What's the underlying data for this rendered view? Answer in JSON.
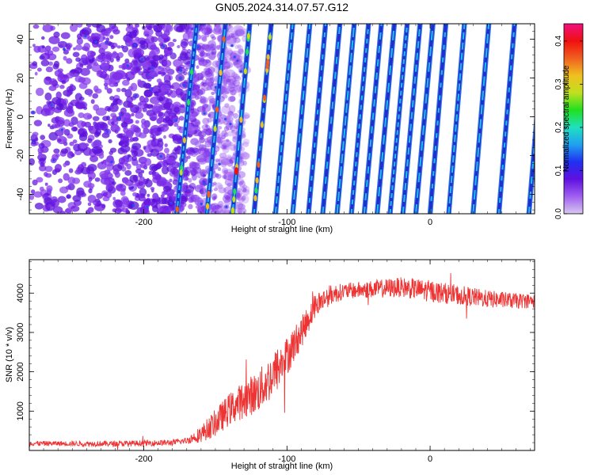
{
  "title": "GN05.2024.314.07.57.G12",
  "chart_data": [
    {
      "type": "heatmap",
      "xlabel": "Height of straight line (km)",
      "ylabel": "Frequency (Hz)",
      "xlim": [
        -280,
        73
      ],
      "ylim": [
        -50,
        48
      ],
      "x_ticks": [
        -200,
        -100,
        0
      ],
      "y_ticks": [
        -40,
        -20,
        0,
        20,
        40
      ],
      "colorbar": {
        "label": "Normalized spectral amplitude",
        "range": [
          0.0,
          0.44
        ],
        "ticks": [
          0.0,
          0.1,
          0.2,
          0.3,
          0.4
        ],
        "colors": [
          "#d8c8f0",
          "#a060f0",
          "#6010e0",
          "#2030f0",
          "#20a0f0",
          "#20e0c0",
          "#20e020",
          "#c0e020",
          "#f0c020",
          "#f06020",
          "#f01010",
          "#f01080"
        ]
      },
      "noise_region_x": [
        -280,
        -150
      ],
      "lines": [
        {
          "x_at_bottom": -177,
          "x_at_top": -163
        },
        {
          "x_at_bottom": -156,
          "x_at_top": -143
        },
        {
          "x_at_bottom": -138,
          "x_at_top": -126
        },
        {
          "x_at_bottom": -123,
          "x_at_top": -111
        },
        {
          "x_at_bottom": -108,
          "x_at_top": -96
        },
        {
          "x_at_bottom": -96,
          "x_at_top": -84
        },
        {
          "x_at_bottom": -85,
          "x_at_top": -73
        },
        {
          "x_at_bottom": -75,
          "x_at_top": -63
        },
        {
          "x_at_bottom": -65,
          "x_at_top": -53
        },
        {
          "x_at_bottom": -55,
          "x_at_top": -43
        },
        {
          "x_at_bottom": -46,
          "x_at_top": -34
        },
        {
          "x_at_bottom": -37,
          "x_at_top": -25
        },
        {
          "x_at_bottom": -28,
          "x_at_top": -16
        },
        {
          "x_at_bottom": -19,
          "x_at_top": -7
        },
        {
          "x_at_bottom": -10,
          "x_at_top": 2
        },
        {
          "x_at_bottom": 0,
          "x_at_top": 11
        },
        {
          "x_at_bottom": 13,
          "x_at_top": 24
        },
        {
          "x_at_bottom": 30,
          "x_at_top": 41
        },
        {
          "x_at_bottom": 48,
          "x_at_top": 59
        },
        {
          "x_at_bottom": 69,
          "x_at_top": 80
        }
      ]
    },
    {
      "type": "line",
      "xlabel": "Height of straight line (km)",
      "ylabel": "SNR (10 * v/v)",
      "xlim": [
        -280,
        73
      ],
      "ylim": [
        0,
        4850
      ],
      "x_ticks": [
        -200,
        -100,
        0
      ],
      "y_ticks": [
        1000,
        2000,
        3000,
        4000
      ],
      "color": "#ee3333",
      "points": [
        {
          "x": -280,
          "y": 180
        },
        {
          "x": -250,
          "y": 175
        },
        {
          "x": -220,
          "y": 170
        },
        {
          "x": -200,
          "y": 185
        },
        {
          "x": -180,
          "y": 200
        },
        {
          "x": -170,
          "y": 250
        },
        {
          "x": -160,
          "y": 420
        },
        {
          "x": -150,
          "y": 700
        },
        {
          "x": -140,
          "y": 1050
        },
        {
          "x": -130,
          "y": 1300
        },
        {
          "x": -120,
          "y": 1500
        },
        {
          "x": -110,
          "y": 1900
        },
        {
          "x": -100,
          "y": 2400
        },
        {
          "x": -90,
          "y": 3000
        },
        {
          "x": -80,
          "y": 3700
        },
        {
          "x": -70,
          "y": 3950
        },
        {
          "x": -60,
          "y": 4050
        },
        {
          "x": -40,
          "y": 4100
        },
        {
          "x": -20,
          "y": 4150
        },
        {
          "x": 0,
          "y": 4050
        },
        {
          "x": 20,
          "y": 3950
        },
        {
          "x": 40,
          "y": 3850
        },
        {
          "x": 60,
          "y": 3800
        },
        {
          "x": 73,
          "y": 3800
        }
      ],
      "noise_amplitude": [
        {
          "x": -280,
          "a": 60
        },
        {
          "x": -170,
          "a": 80
        },
        {
          "x": -150,
          "a": 350
        },
        {
          "x": -110,
          "a": 600
        },
        {
          "x": -85,
          "a": 350
        },
        {
          "x": -60,
          "a": 200
        },
        {
          "x": 0,
          "a": 280
        },
        {
          "x": 73,
          "a": 180
        }
      ]
    }
  ]
}
